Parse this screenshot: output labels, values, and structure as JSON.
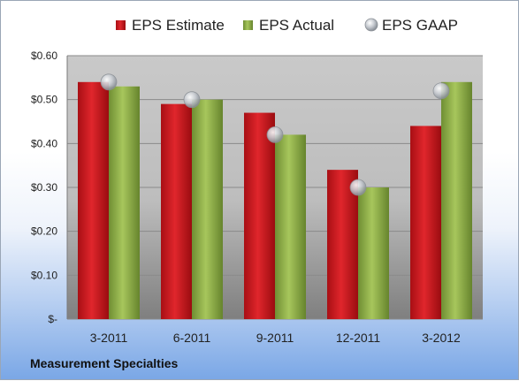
{
  "chart_data": {
    "type": "bar",
    "title": "",
    "xlabel": "",
    "ylabel": "",
    "ylim": [
      0,
      0.6
    ],
    "yticks": [
      0,
      0.1,
      0.2,
      0.3,
      0.4,
      0.5,
      0.6
    ],
    "ytick_labels": [
      "$-",
      "$0.10",
      "$0.20",
      "$0.30",
      "$0.40",
      "$0.50",
      "$0.60"
    ],
    "categories": [
      "3-2011",
      "6-2011",
      "9-2011",
      "12-2011",
      "3-2012"
    ],
    "series": [
      {
        "name": "EPS Estimate",
        "kind": "bar",
        "color": "#c8191f",
        "values": [
          0.54,
          0.49,
          0.47,
          0.34,
          0.44
        ]
      },
      {
        "name": "EPS Actual",
        "kind": "bar",
        "color": "#8fb04a",
        "values": [
          0.53,
          0.5,
          0.42,
          0.3,
          0.54
        ]
      },
      {
        "name": "EPS GAAP",
        "kind": "marker",
        "color": "#b9bec5",
        "values": [
          0.54,
          0.5,
          0.42,
          0.3,
          0.52
        ]
      }
    ],
    "grid": true,
    "legend_position": "top"
  },
  "footer": {
    "company": "Measurement Specialties"
  }
}
